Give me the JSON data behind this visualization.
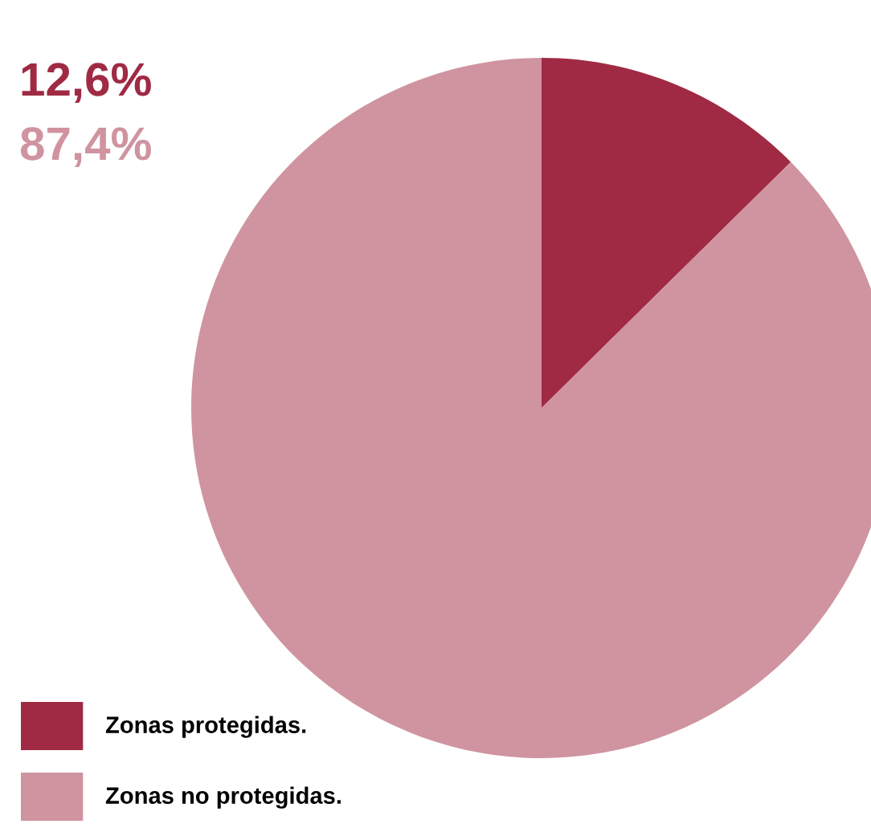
{
  "chart_data": {
    "type": "pie",
    "categories": [
      "Zonas protegidas.",
      "Zonas no protegidas."
    ],
    "values": [
      12.6,
      87.4
    ],
    "colors": [
      "#a02a44",
      "#cf94a0"
    ],
    "annotations": [
      "12,6%",
      "87,4%"
    ],
    "legend": "bottom left"
  }
}
